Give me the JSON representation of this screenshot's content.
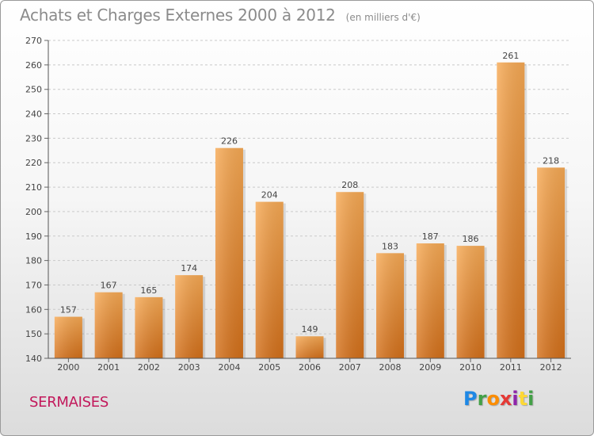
{
  "header": {
    "title": "Achats et Charges Externes 2000 à 2012",
    "unit": "(en milliers d'€)"
  },
  "footer": {
    "commune": "SERMAISES",
    "logo": "Proxiti"
  },
  "colors": {
    "bar_light": "#f5a552",
    "bar_dark": "#d9731b",
    "commune": "#c2185b",
    "title": "#8b8b8b"
  },
  "chart_data": {
    "type": "bar",
    "title": "Achats et Charges Externes 2000 à 2012",
    "subtitle": "(en milliers d'€)",
    "categories": [
      "2000",
      "2001",
      "2002",
      "2003",
      "2004",
      "2005",
      "2006",
      "2007",
      "2008",
      "2009",
      "2010",
      "2011",
      "2012"
    ],
    "values": [
      157,
      167,
      165,
      174,
      226,
      204,
      149,
      208,
      183,
      187,
      186,
      261,
      218
    ],
    "ylim": [
      140,
      270
    ],
    "yticks": [
      140,
      150,
      160,
      170,
      180,
      190,
      200,
      210,
      220,
      230,
      240,
      250,
      260,
      270
    ],
    "grid": true,
    "xlabel": "",
    "ylabel": ""
  }
}
